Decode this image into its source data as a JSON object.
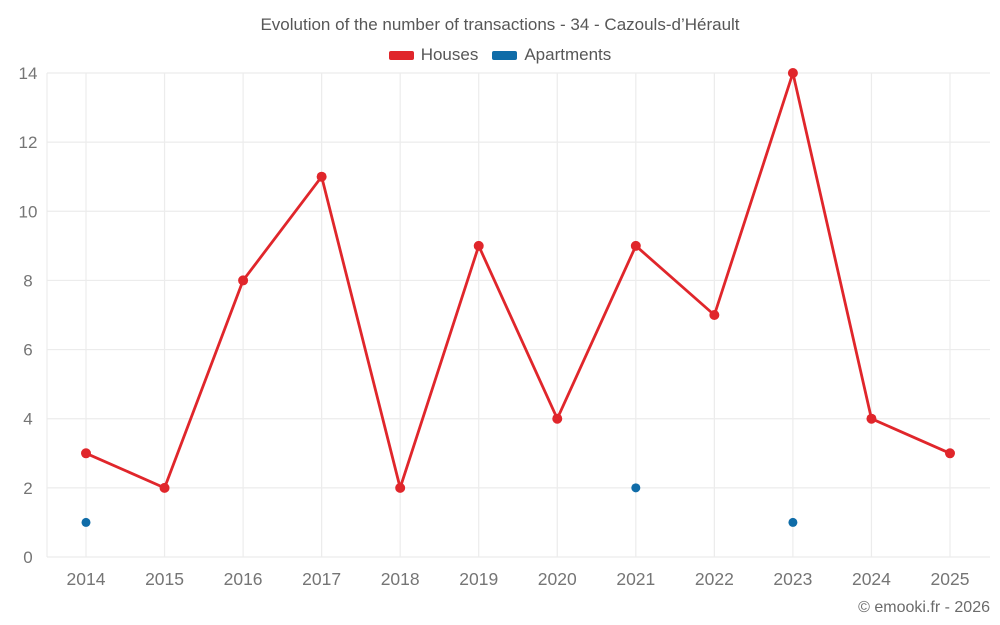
{
  "header": {
    "title": "Evolution of the number of transactions - 34 - Cazouls-d’Hérault"
  },
  "legend": [
    {
      "label": "Houses",
      "color": "#e0262b"
    },
    {
      "label": "Apartments",
      "color": "#0f6ca8"
    }
  ],
  "footer": {
    "credit": "© emooki.fr - 2026"
  },
  "colors": {
    "grid": "#ececec",
    "axis_label": "#757575",
    "title_text": "#575757",
    "houses": "#e0262b",
    "apartments": "#0f6ca8"
  },
  "chart_data": {
    "type": "line",
    "title": "Evolution of the number of transactions - 34 - Cazouls-d’Hérault",
    "xlabel": "",
    "ylabel": "",
    "categories": [
      "2014",
      "2015",
      "2016",
      "2017",
      "2018",
      "2019",
      "2020",
      "2021",
      "2022",
      "2023",
      "2024",
      "2025"
    ],
    "series": [
      {
        "name": "Houses",
        "color": "#e0262b",
        "style": "line+markers",
        "values": [
          3,
          2,
          8,
          11,
          2,
          9,
          4,
          9,
          7,
          14,
          4,
          3
        ]
      },
      {
        "name": "Apartments",
        "color": "#0f6ca8",
        "style": "markers",
        "values": [
          1,
          null,
          null,
          null,
          null,
          null,
          null,
          2,
          null,
          1,
          null,
          null
        ]
      }
    ],
    "yticks": [
      0,
      2,
      4,
      6,
      8,
      10,
      12,
      14
    ],
    "ylim": [
      0,
      14
    ],
    "grid": true,
    "legend_position": "top"
  }
}
